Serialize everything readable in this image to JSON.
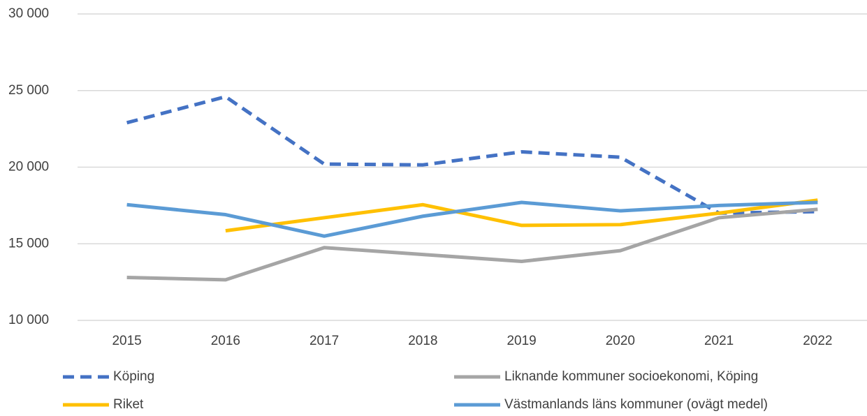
{
  "chart_data": {
    "type": "line",
    "categories": [
      "2015",
      "2016",
      "2017",
      "2018",
      "2019",
      "2020",
      "2021",
      "2022"
    ],
    "series": [
      {
        "name": "Köping",
        "color": "#4472c4",
        "dashed": true,
        "values": [
          22900,
          24600,
          20200,
          20150,
          21000,
          20650,
          17000,
          17100
        ]
      },
      {
        "name": "Liknande kommuner socioekonomi, Köping",
        "color": "#a5a5a5",
        "values": [
          12800,
          12650,
          14750,
          14300,
          13850,
          14550,
          16700,
          17250
        ]
      },
      {
        "name": "Riket",
        "color": "#ffc000",
        "values": [
          null,
          15850,
          16700,
          17550,
          16200,
          16250,
          17000,
          17850
        ]
      },
      {
        "name": "Västmanlands läns kommuner (ovägt medel)",
        "color": "#5b9bd5",
        "values": [
          17550,
          16900,
          15500,
          16800,
          17700,
          17150,
          17500,
          17700
        ]
      }
    ],
    "ylim": [
      10000,
      30000
    ],
    "yticks": [
      {
        "value": 10000,
        "label": "10 000"
      },
      {
        "value": 15000,
        "label": "15 000"
      },
      {
        "value": 20000,
        "label": "20 000"
      },
      {
        "value": 25000,
        "label": "25 000"
      },
      {
        "value": 30000,
        "label": "30 000"
      }
    ],
    "grid": true,
    "legend": "bottom"
  }
}
